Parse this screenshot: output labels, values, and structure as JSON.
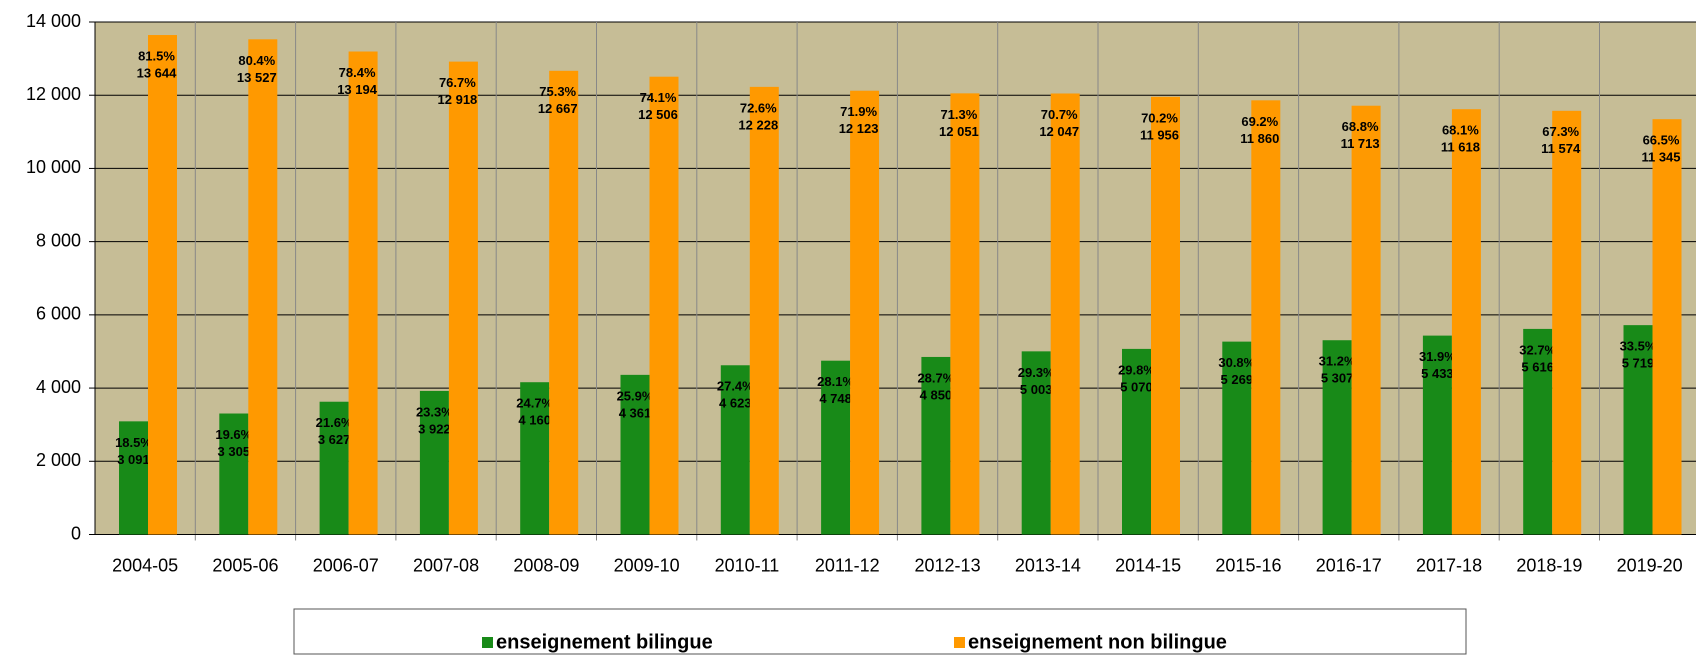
{
  "chart_data": {
    "type": "bar",
    "categories": [
      "2004-05",
      "2005-06",
      "2006-07",
      "2007-08",
      "2008-09",
      "2009-10",
      "2010-11",
      "2011-12",
      "2012-13",
      "2013-14",
      "2014-15",
      "2015-16",
      "2016-17",
      "2017-18",
      "2018-19",
      "2019-20"
    ],
    "series": [
      {
        "name": "enseignement bilingue",
        "color": "#188a18",
        "values": [
          3091,
          3305,
          3627,
          3922,
          4160,
          4361,
          4623,
          4748,
          4850,
          5003,
          5070,
          5269,
          5307,
          5433,
          5616,
          5719
        ],
        "value_labels": [
          "3 091",
          "3 305",
          "3 627",
          "3 922",
          "4 160",
          "4 361",
          "4 623",
          "4 748",
          "4 850",
          "5 003",
          "5 070",
          "5 269",
          "5 307",
          "5 433",
          "5 616",
          "5 719"
        ],
        "share_labels": [
          "18.5%",
          "19.6%",
          "21.6%",
          "23.3%",
          "24.7%",
          "25.9%",
          "27.4%",
          "28.1%",
          "28.7%",
          "29.3%",
          "29.8%",
          "30.8%",
          "31.2%",
          "31.9%",
          "32.7%",
          "33.5%"
        ]
      },
      {
        "name": "enseignement non bilingue",
        "color": "#ff9900",
        "values": [
          13644,
          13527,
          13194,
          12918,
          12667,
          12506,
          12228,
          12123,
          12051,
          12047,
          11956,
          11860,
          11713,
          11618,
          11574,
          11345
        ],
        "value_labels": [
          "13 644",
          "13 527",
          "13 194",
          "12 918",
          "12 667",
          "12 506",
          "12 228",
          "12 123",
          "12 051",
          "12 047",
          "11 956",
          "11 860",
          "11 713",
          "11 618",
          "11 574",
          "11 345"
        ],
        "share_labels": [
          "81.5%",
          "80.4%",
          "78.4%",
          "76.7%",
          "75.3%",
          "74.1%",
          "72.6%",
          "71.9%",
          "71.3%",
          "70.7%",
          "70.2%",
          "69.2%",
          "68.8%",
          "68.1%",
          "67.3%",
          "66.5%"
        ]
      }
    ],
    "ylim": [
      0,
      14000
    ],
    "yticks": [
      0,
      {
        "value": 2000,
        "label": "2 000"
      },
      {
        "value": 4000,
        "label": "4 000"
      },
      {
        "value": 6000,
        "label": "6 000"
      },
      {
        "value": 8000,
        "label": "8 000"
      },
      {
        "value": 10000,
        "label": "10 000"
      },
      {
        "value": 12000,
        "label": "12 000"
      },
      {
        "value": 14000,
        "label": "14 000"
      }
    ],
    "grid": true,
    "legend": "bottom"
  }
}
